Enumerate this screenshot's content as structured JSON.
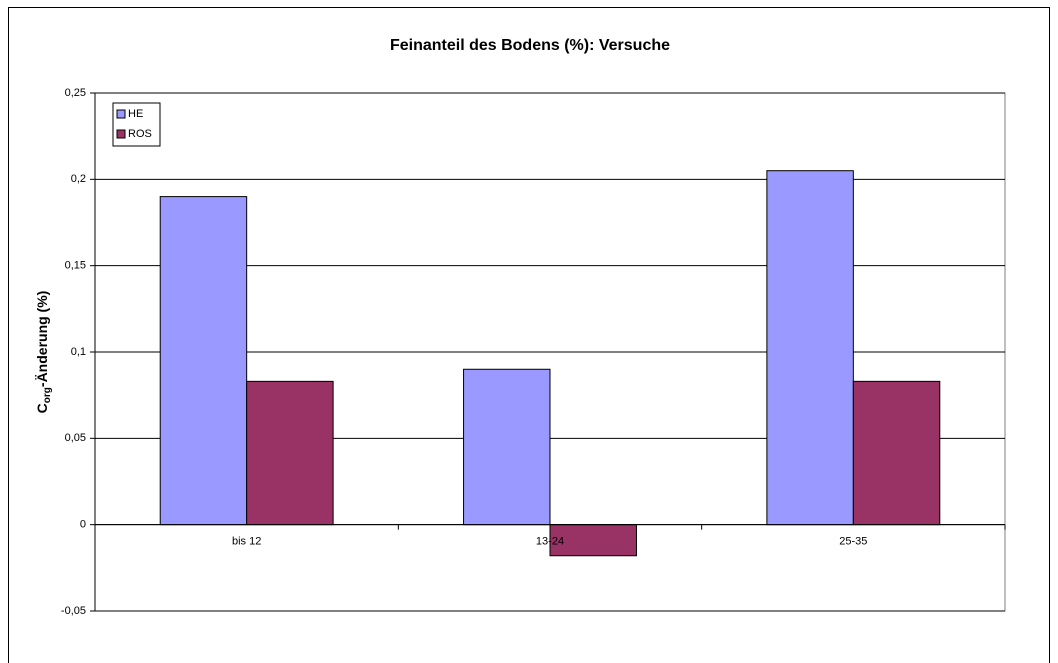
{
  "chart_data": {
    "type": "bar",
    "title": "Feinanteil des Bodens (%): Versuche",
    "ylabel": {
      "main": "C",
      "sub": "org",
      "rest": "-Änderung (%)"
    },
    "categories": [
      "bis 12",
      "13-24",
      "25-35"
    ],
    "series": [
      {
        "name": "HE",
        "color": "#9999ff",
        "values": [
          0.19,
          0.09,
          0.205
        ]
      },
      {
        "name": "ROS",
        "color": "#993366",
        "values": [
          0.083,
          -0.018,
          0.083
        ]
      }
    ],
    "ylim": [
      -0.05,
      0.25
    ],
    "yticks": [
      {
        "value": -0.05,
        "label": "-0,05"
      },
      0,
      {
        "value": 0.05,
        "label": "0,05"
      },
      {
        "value": 0.1,
        "label": "0,1"
      },
      {
        "value": 0.15,
        "label": "0,15"
      },
      {
        "value": 0.2,
        "label": "0,2"
      },
      {
        "value": 0.25,
        "label": "0,25"
      }
    ],
    "grid": true,
    "legend": "top-left"
  }
}
